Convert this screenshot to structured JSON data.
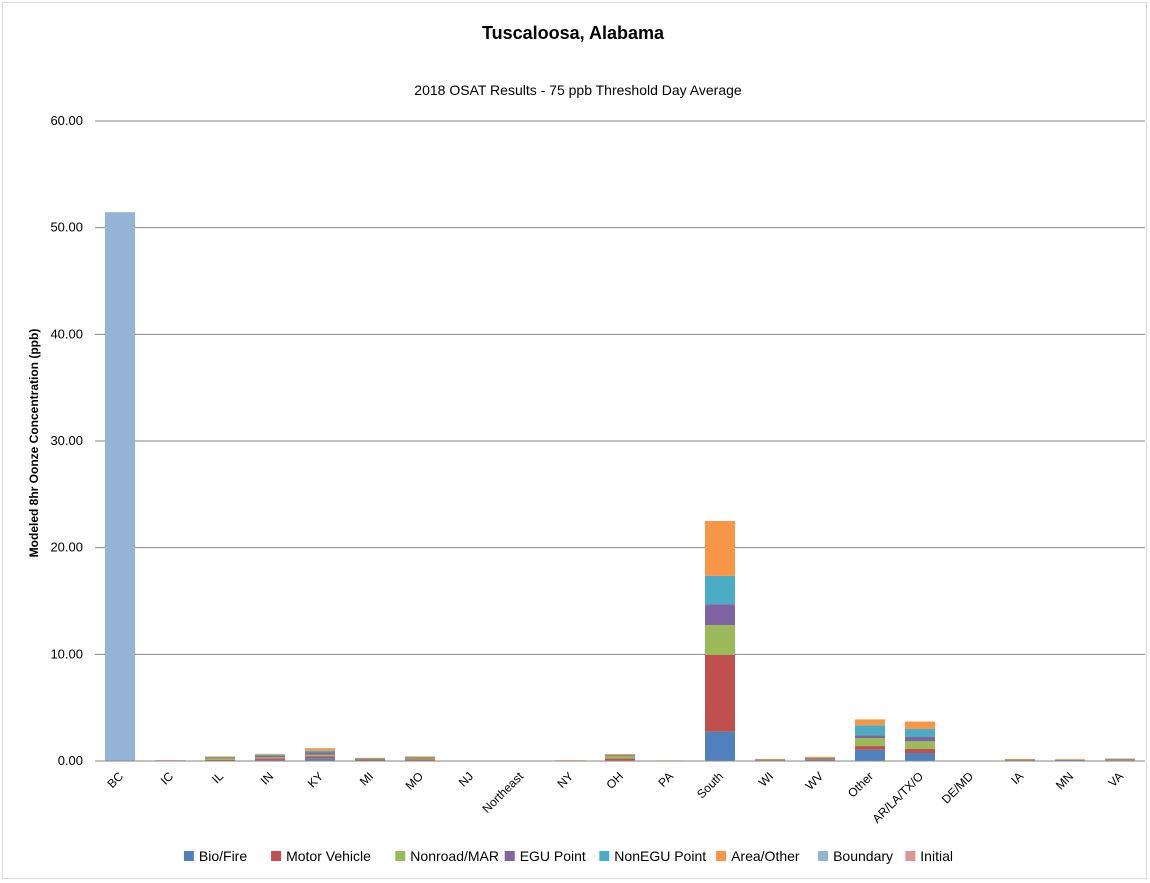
{
  "chart_data": {
    "type": "bar",
    "stacked": true,
    "title": "Tuscaloosa, Alabama",
    "subtitle": "2018 OSAT Results - 75 ppb Threshold Day Average",
    "xlabel": "",
    "ylabel": "Modeled 8hr Oonze Concentration (ppb)",
    "ylim": [
      0,
      60
    ],
    "yticks": [
      "0.00",
      "10.00",
      "20.00",
      "30.00",
      "40.00",
      "50.00",
      "60.00"
    ],
    "grid": true,
    "legend_position": "bottom",
    "categories": [
      "BC",
      "IC",
      "IL",
      "IN",
      "KY",
      "MI",
      "MO",
      "NJ",
      "Northeast",
      "NY",
      "OH",
      "PA",
      "South",
      "WI",
      "WV",
      "Other",
      "AR/LA/TX/O",
      "DE/MD",
      "IA",
      "MN",
      "VA"
    ],
    "series": [
      {
        "name": "Bio/Fire",
        "color": "#4F81BD",
        "values": [
          0,
          0,
          0.05,
          0.1,
          0.25,
          0.05,
          0.05,
          0,
          0,
          0,
          0.05,
          0,
          2.75,
          0.05,
          0.05,
          1.05,
          0.75,
          0,
          0.05,
          0.05,
          0.05
        ]
      },
      {
        "name": "Motor Vehicle",
        "color": "#C0504D",
        "values": [
          0,
          0,
          0.05,
          0.15,
          0.2,
          0.05,
          0.1,
          0,
          0,
          0,
          0.2,
          0,
          7.2,
          0.03,
          0.1,
          0.35,
          0.4,
          0,
          0.03,
          0.03,
          0.03
        ]
      },
      {
        "name": "Nonroad/MAR",
        "color": "#9BBB59",
        "values": [
          0,
          0,
          0.2,
          0.1,
          0.15,
          0.07,
          0.15,
          0,
          0,
          0.03,
          0.25,
          0,
          2.8,
          0.05,
          0.05,
          0.75,
          0.7,
          0,
          0.05,
          0.03,
          0.05
        ]
      },
      {
        "name": "EGU Point",
        "color": "#8064A2",
        "values": [
          0,
          0,
          0.03,
          0.12,
          0.2,
          0.03,
          0.03,
          0,
          0,
          0,
          0.05,
          0.03,
          1.95,
          0.02,
          0.05,
          0.25,
          0.4,
          0,
          0.02,
          0.02,
          0.03
        ]
      },
      {
        "name": "NonEGU Point",
        "color": "#4BACC6",
        "values": [
          0,
          0,
          0.05,
          0.1,
          0.15,
          0.05,
          0.05,
          0,
          0,
          0.02,
          0.05,
          0,
          2.65,
          0.03,
          0.05,
          0.95,
          0.75,
          0,
          0.03,
          0.02,
          0.03
        ]
      },
      {
        "name": "Area/Other",
        "color": "#F79646",
        "values": [
          0,
          0.05,
          0.05,
          0.1,
          0.25,
          0.05,
          0.05,
          0,
          0,
          0.02,
          0.05,
          0.03,
          5.15,
          0.02,
          0.1,
          0.55,
          0.7,
          0.03,
          0.02,
          0.02,
          0.05
        ]
      },
      {
        "name": "Boundary",
        "color": "#95B3D7",
        "values": [
          51.45,
          0,
          0,
          0,
          0,
          0,
          0,
          0,
          0,
          0,
          0,
          0,
          0,
          0,
          0,
          0,
          0,
          0,
          0,
          0,
          0
        ]
      },
      {
        "name": "Initial",
        "color": "#DA9694",
        "values": [
          0,
          0.03,
          0,
          0,
          0,
          0,
          0,
          0,
          0,
          0,
          0,
          0,
          0,
          0,
          0,
          0,
          0,
          0,
          0,
          0,
          0
        ]
      }
    ]
  }
}
